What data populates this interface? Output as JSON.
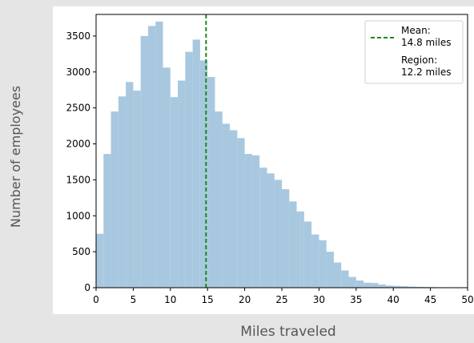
{
  "chart_data": {
    "type": "bar",
    "title": "",
    "xlabel": "Miles traveled",
    "ylabel": "Number of employees",
    "xlim": [
      0,
      50
    ],
    "ylim": [
      0,
      3800
    ],
    "xticks": [
      0,
      5,
      10,
      15,
      20,
      25,
      30,
      35,
      40,
      45,
      50
    ],
    "yticks": [
      0,
      500,
      1000,
      1500,
      2000,
      2500,
      3000,
      3500
    ],
    "grid": false,
    "legend_position": "top-right",
    "bar_color": "#a8c8e0",
    "line_color": "#1a8a1a",
    "bin_width": 1,
    "bin_starts": [
      0,
      1,
      2,
      3,
      4,
      5,
      6,
      7,
      8,
      9,
      10,
      11,
      12,
      13,
      14,
      15,
      16,
      17,
      18,
      19,
      20,
      21,
      22,
      23,
      24,
      25,
      26,
      27,
      27.5,
      28,
      29,
      30,
      31,
      32,
      33,
      34,
      35,
      36,
      37,
      38,
      39,
      40,
      41,
      42,
      43,
      44,
      45,
      46,
      47,
      48,
      49
    ],
    "bin_values": [
      750,
      1860,
      2450,
      2660,
      2860,
      2740,
      3500,
      3640,
      3700,
      3060,
      2650,
      2880,
      3280,
      3450,
      3160,
      2930,
      2450,
      2280,
      2190,
      2080,
      1860,
      1840,
      1670,
      1590,
      1500,
      1370,
      1200,
      1060,
      1060,
      920,
      740,
      660,
      500,
      350,
      240,
      150,
      100,
      70,
      65,
      45,
      30,
      25,
      20,
      15,
      12,
      10,
      8,
      6,
      4,
      3,
      2
    ],
    "series": [
      {
        "type": "vline",
        "x": 14.8,
        "label": "Mean:\n14.8 miles"
      }
    ],
    "legend": {
      "mean_line1": "Mean:",
      "mean_line2": "14.8 miles",
      "region_line1": "Region:",
      "region_line2": "12.2 miles"
    }
  }
}
